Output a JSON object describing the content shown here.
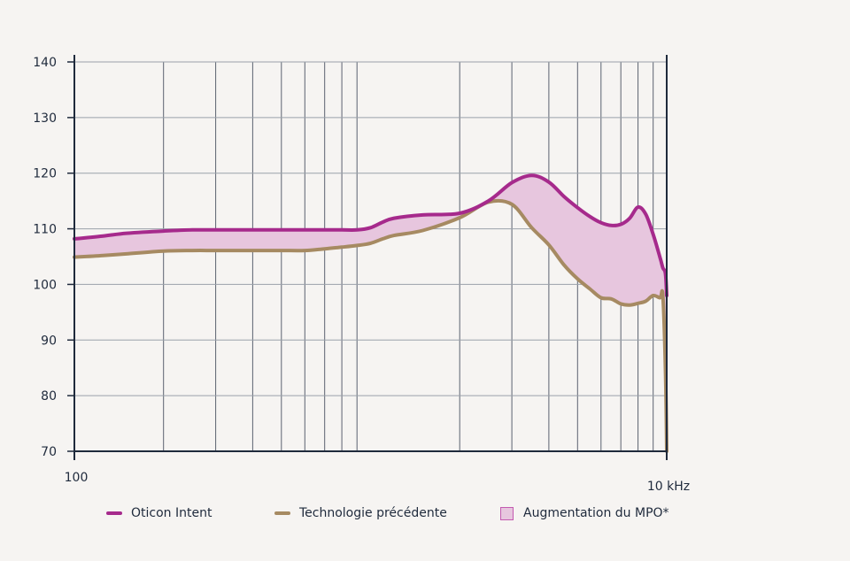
{
  "chart_data": {
    "type": "line",
    "xscale": "log",
    "xlim": [
      100,
      10000
    ],
    "ylim": [
      70,
      140
    ],
    "yticks": [
      70,
      80,
      90,
      100,
      110,
      120,
      130,
      140
    ],
    "xtick_labels": [
      {
        "value": 100,
        "label": "100"
      },
      {
        "value": 10000,
        "label": "10 kHz"
      }
    ],
    "grid": true,
    "legend_position": "bottom",
    "series": [
      {
        "name": "Oticon Intent",
        "color": "#a62a8c",
        "x": [
          100,
          125,
          150,
          200,
          250,
          300,
          400,
          500,
          600,
          700,
          800,
          900,
          1000,
          1100,
          1200,
          1500,
          2000,
          2500,
          3000,
          3500,
          4000,
          4500,
          5000,
          5500,
          6000,
          6500,
          7000,
          7500,
          8000,
          8500,
          9000,
          9500,
          9700,
          9900,
          10000
        ],
        "y": [
          108.2,
          108.7,
          109.2,
          109.6,
          109.8,
          109.8,
          109.8,
          109.8,
          109.8,
          109.8,
          109.8,
          109.8,
          110.2,
          111.2,
          111.9,
          112.5,
          112.8,
          115.0,
          118.3,
          119.6,
          118.4,
          115.8,
          113.8,
          112.2,
          111.1,
          110.6,
          110.8,
          111.9,
          113.9,
          112.6,
          109.0,
          104.8,
          103.0,
          102.0,
          98.0
        ]
      },
      {
        "name": "Technologie précédente",
        "color": "#a68a62",
        "x": [
          100,
          125,
          150,
          200,
          250,
          300,
          400,
          500,
          600,
          700,
          800,
          900,
          1000,
          1100,
          1200,
          1500,
          2000,
          2500,
          3000,
          3500,
          4000,
          4500,
          5000,
          5500,
          6000,
          6500,
          7000,
          7500,
          8000,
          8500,
          9000,
          9500,
          9700,
          9900,
          10000
        ],
        "y": [
          104.9,
          105.2,
          105.5,
          106.0,
          106.1,
          106.1,
          106.1,
          106.1,
          106.1,
          106.4,
          106.7,
          107.0,
          107.4,
          108.2,
          108.8,
          109.7,
          112.0,
          114.8,
          114.4,
          110.2,
          107.1,
          103.5,
          101.0,
          99.2,
          97.6,
          97.4,
          96.5,
          96.3,
          96.6,
          97.0,
          98.0,
          97.6,
          98.0,
          85.0,
          70.0
        ]
      }
    ],
    "fill_between": {
      "name": "Augmentation du MPO*",
      "color": "#e7c6de",
      "edge_color": "#c45ab0"
    }
  },
  "legend": {
    "items": [
      {
        "label": "Oticon Intent",
        "color": "#a62a8c"
      },
      {
        "label": "Technologie précédente",
        "color": "#a68a62"
      },
      {
        "label": "Augmentation du MPO*",
        "color": "#e7c6de"
      }
    ]
  }
}
